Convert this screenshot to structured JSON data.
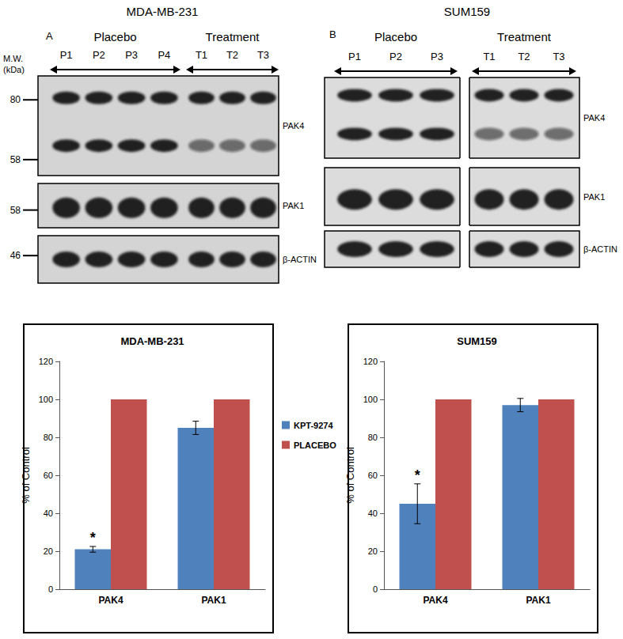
{
  "blots": [
    {
      "label": "A",
      "title": "MDA-MB-231",
      "mw_label": [
        "M.W.",
        "(kDa)"
      ],
      "groups": [
        {
          "name": "Placebo",
          "lanes": [
            "P1",
            "P2",
            "P3",
            "P4"
          ]
        },
        {
          "name": "Treatment",
          "lanes": [
            "T1",
            "T2",
            "T3"
          ]
        }
      ],
      "rows": [
        {
          "protein": "PAK4",
          "mw": [
            80,
            58
          ]
        },
        {
          "protein": "PAK1",
          "mw": [
            58
          ]
        },
        {
          "protein": "β-ACTIN",
          "mw": [
            46
          ]
        }
      ]
    },
    {
      "label": "B",
      "title": "SUM159",
      "groups": [
        {
          "name": "Placebo",
          "lanes": [
            "P1",
            "P2",
            "P3"
          ]
        },
        {
          "name": "Treatment",
          "lanes": [
            "T1",
            "T2",
            "T3"
          ]
        }
      ],
      "rows": [
        {
          "protein": "PAK4"
        },
        {
          "protein": "PAK1"
        },
        {
          "protein": "β-ACTIN"
        }
      ]
    }
  ],
  "chart_data": [
    {
      "type": "bar",
      "title": "MDA-MB-231",
      "ylabel": "% of Control",
      "categories": [
        "PAK4",
        "PAK1"
      ],
      "series": [
        {
          "name": "KPT-9274",
          "color": "#4f81bd",
          "values": [
            21,
            85
          ],
          "errors": [
            1.5,
            3.5
          ]
        },
        {
          "name": "PLACEBO",
          "color": "#c0504d",
          "values": [
            100,
            100
          ]
        }
      ],
      "ylim": [
        0,
        120
      ],
      "yticks": [
        0,
        20,
        40,
        60,
        80,
        100,
        120
      ],
      "grid": false,
      "legend": "right",
      "annotations": [
        {
          "text": "*",
          "category": "PAK4",
          "series": "KPT-9274"
        }
      ]
    },
    {
      "type": "bar",
      "title": "SUM159",
      "ylabel": "% of Control",
      "categories": [
        "PAK4",
        "PAK1"
      ],
      "series": [
        {
          "name": "KPT-9274",
          "color": "#4f81bd",
          "values": [
            45,
            97
          ],
          "errors": [
            10.5,
            3.5
          ]
        },
        {
          "name": "PLACEBO",
          "color": "#c0504d",
          "values": [
            100,
            100
          ]
        }
      ],
      "ylim": [
        0,
        120
      ],
      "yticks": [
        0,
        20,
        40,
        60,
        80,
        100,
        120
      ],
      "grid": false,
      "annotations": [
        {
          "text": "*",
          "category": "PAK4",
          "series": "KPT-9274"
        }
      ]
    }
  ]
}
